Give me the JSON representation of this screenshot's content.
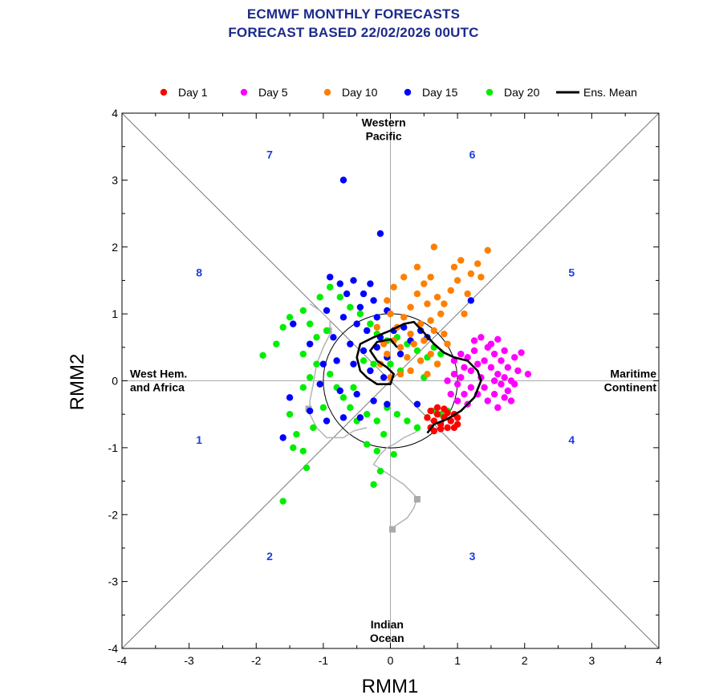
{
  "header": {
    "title_line1": "ECMWF MONTHLY FORECASTS",
    "title_line2": "FORECAST  BASED 22/02/2026 00UTC"
  },
  "chart_data": {
    "type": "scatter",
    "xlabel": "RMM1",
    "ylabel": "RMM2",
    "xlim": [
      -4,
      4
    ],
    "ylim": [
      -4,
      4
    ],
    "xticks": [
      "-4",
      "-3",
      "-2",
      "-1",
      "0",
      "1",
      "2",
      "3",
      "4"
    ],
    "yticks": [
      "-4",
      "-3",
      "-2",
      "-1",
      "0",
      "1",
      "2",
      "3",
      "4"
    ],
    "legend_position": "top",
    "regions": {
      "top": [
        "Western",
        "Pacific"
      ],
      "bottom": [
        "Indian",
        "Ocean"
      ],
      "left": [
        "West Hem.",
        "and Africa"
      ],
      "right": [
        "Maritime",
        "Continent"
      ]
    },
    "phases": [
      {
        "label": "1",
        "x": -2.85,
        "y": -0.88
      },
      {
        "label": "2",
        "x": -1.8,
        "y": -2.62
      },
      {
        "label": "3",
        "x": 1.22,
        "y": -2.62
      },
      {
        "label": "4",
        "x": 2.7,
        "y": -0.88
      },
      {
        "label": "5",
        "x": 2.7,
        "y": 1.62
      },
      {
        "label": "6",
        "x": 1.22,
        "y": 3.38
      },
      {
        "label": "7",
        "x": -1.8,
        "y": 3.38
      },
      {
        "label": "8",
        "x": -2.85,
        "y": 1.62
      }
    ],
    "unit_circle_radius": 1,
    "observed_track": {
      "color": "#b4b4b4",
      "points": [
        [
          0.45,
          -0.72
        ],
        [
          0.35,
          -0.78
        ],
        [
          0.2,
          -0.85
        ],
        [
          0.05,
          -0.95
        ],
        [
          -0.05,
          -1.0
        ],
        [
          -0.15,
          -1.1
        ],
        [
          -0.25,
          -1.25
        ],
        [
          -0.1,
          -1.35
        ],
        [
          0.05,
          -1.45
        ],
        [
          0.2,
          -1.55
        ],
        [
          0.3,
          -1.65
        ],
        [
          0.4,
          -1.75
        ],
        [
          0.35,
          -1.9
        ],
        [
          0.25,
          -2.05
        ],
        [
          0.1,
          -2.15
        ],
        [
          0.0,
          -2.22
        ]
      ],
      "markers": [
        [
          0.4,
          -1.77
        ],
        [
          0.03,
          -2.22
        ]
      ]
    },
    "observed_track2": {
      "color": "#b4b4b4",
      "points": [
        [
          -0.35,
          -0.7
        ],
        [
          -0.55,
          -0.75
        ],
        [
          -0.7,
          -0.85
        ],
        [
          -0.95,
          -0.85
        ],
        [
          -1.1,
          -0.7
        ],
        [
          -1.2,
          -0.5
        ],
        [
          -1.2,
          -0.3
        ],
        [
          -1.15,
          -0.05
        ],
        [
          -1.1,
          0.25
        ],
        [
          -1.0,
          0.5
        ],
        [
          -0.9,
          0.7
        ],
        [
          -0.9,
          0.9
        ],
        [
          -1.05,
          1.05
        ],
        [
          -1.2,
          1.15
        ]
      ],
      "markers": [
        [
          -1.22,
          -0.42
        ],
        [
          -0.92,
          0.75
        ]
      ]
    },
    "ensemble_mean": {
      "name": "Ens. Mean",
      "color": "#000000",
      "points": [
        [
          0.55,
          -0.78
        ],
        [
          0.65,
          -0.65
        ],
        [
          0.85,
          -0.57
        ],
        [
          1.05,
          -0.45
        ],
        [
          1.25,
          -0.25
        ],
        [
          1.35,
          0.0
        ],
        [
          1.3,
          0.15
        ],
        [
          1.15,
          0.3
        ],
        [
          0.95,
          0.35
        ],
        [
          0.8,
          0.42
        ],
        [
          0.65,
          0.55
        ],
        [
          0.5,
          0.72
        ],
        [
          0.35,
          0.88
        ],
        [
          0.2,
          0.85
        ],
        [
          0.0,
          0.75
        ],
        [
          -0.25,
          0.65
        ],
        [
          -0.45,
          0.55
        ],
        [
          -0.5,
          0.35
        ],
        [
          -0.45,
          0.15
        ],
        [
          -0.35,
          0.05
        ],
        [
          -0.2,
          -0.05
        ],
        [
          0.0,
          -0.05
        ],
        [
          0.05,
          0.1
        ],
        [
          -0.05,
          0.2
        ],
        [
          -0.2,
          0.3
        ],
        [
          -0.3,
          0.45
        ],
        [
          -0.2,
          0.58
        ],
        [
          0.0,
          0.62
        ],
        [
          0.1,
          0.5
        ]
      ]
    },
    "series": [
      {
        "name": "Day 1",
        "color": "#ff0000",
        "points": [
          [
            0.55,
            -0.55
          ],
          [
            0.6,
            -0.7
          ],
          [
            0.65,
            -0.6
          ],
          [
            0.7,
            -0.5
          ],
          [
            0.75,
            -0.65
          ],
          [
            0.8,
            -0.55
          ],
          [
            0.85,
            -0.7
          ],
          [
            0.9,
            -0.6
          ],
          [
            0.95,
            -0.5
          ],
          [
            1.0,
            -0.65
          ],
          [
            0.6,
            -0.45
          ],
          [
            0.7,
            -0.4
          ],
          [
            0.8,
            -0.42
          ],
          [
            0.65,
            -0.75
          ],
          [
            0.75,
            -0.72
          ],
          [
            0.95,
            -0.7
          ],
          [
            1.0,
            -0.55
          ],
          [
            0.85,
            -0.48
          ]
        ]
      },
      {
        "name": "Day 5",
        "color": "#ff00ff",
        "points": [
          [
            0.95,
            0.3
          ],
          [
            1.05,
            0.4
          ],
          [
            1.1,
            0.2
          ],
          [
            1.15,
            0.35
          ],
          [
            1.2,
            0.15
          ],
          [
            1.25,
            0.45
          ],
          [
            1.3,
            0.25
          ],
          [
            1.35,
            0.05
          ],
          [
            1.4,
            0.3
          ],
          [
            1.45,
            0.5
          ],
          [
            1.5,
            0.2
          ],
          [
            1.55,
            0.4
          ],
          [
            1.6,
            0.1
          ],
          [
            1.65,
            0.3
          ],
          [
            1.7,
            0.45
          ],
          [
            1.75,
            0.2
          ],
          [
            1.8,
            0.0
          ],
          [
            1.85,
            0.35
          ],
          [
            1.9,
            0.15
          ],
          [
            1.95,
            0.42
          ],
          [
            2.05,
            0.1
          ],
          [
            1.2,
            -0.1
          ],
          [
            1.3,
            -0.2
          ],
          [
            1.4,
            -0.1
          ],
          [
            1.45,
            -0.3
          ],
          [
            1.55,
            -0.2
          ],
          [
            1.6,
            -0.4
          ],
          [
            1.65,
            -0.05
          ],
          [
            1.7,
            -0.25
          ],
          [
            1.75,
            -0.15
          ],
          [
            1.8,
            -0.3
          ],
          [
            1.55,
            0.0
          ],
          [
            1.25,
            0.6
          ],
          [
            1.35,
            0.65
          ],
          [
            1.5,
            0.55
          ],
          [
            1.6,
            0.62
          ],
          [
            0.85,
            0.0
          ],
          [
            0.95,
            0.1
          ],
          [
            1.0,
            -0.05
          ],
          [
            1.05,
            0.05
          ],
          [
            1.1,
            -0.2
          ],
          [
            1.15,
            -0.35
          ],
          [
            1.0,
            -0.3
          ],
          [
            0.9,
            -0.2
          ],
          [
            1.7,
            0.05
          ],
          [
            1.85,
            -0.05
          ]
        ]
      },
      {
        "name": "Day 10",
        "color": "#ff7f00",
        "points": [
          [
            -0.15,
            0.25
          ],
          [
            -0.05,
            0.4
          ],
          [
            0.05,
            0.6
          ],
          [
            0.15,
            0.5
          ],
          [
            0.25,
            0.35
          ],
          [
            0.3,
            0.15
          ],
          [
            0.35,
            0.55
          ],
          [
            0.45,
            0.3
          ],
          [
            0.5,
            0.6
          ],
          [
            0.55,
            0.1
          ],
          [
            0.6,
            0.4
          ],
          [
            0.65,
            0.75
          ],
          [
            0.7,
            0.25
          ],
          [
            0.75,
            1.0
          ],
          [
            0.8,
            1.15
          ],
          [
            0.85,
            0.55
          ],
          [
            0.9,
            1.35
          ],
          [
            1.0,
            1.5
          ],
          [
            1.1,
            1.0
          ],
          [
            1.15,
            1.3
          ],
          [
            1.2,
            1.6
          ],
          [
            1.3,
            1.75
          ],
          [
            1.35,
            1.55
          ],
          [
            1.45,
            1.95
          ],
          [
            1.05,
            1.8
          ],
          [
            0.95,
            1.7
          ],
          [
            0.65,
            2.0
          ],
          [
            0.4,
            1.7
          ],
          [
            0.2,
            1.55
          ],
          [
            0.05,
            1.4
          ],
          [
            -0.05,
            1.2
          ],
          [
            0.0,
            1.0
          ],
          [
            0.1,
            0.8
          ],
          [
            0.2,
            0.95
          ],
          [
            0.3,
            1.1
          ],
          [
            0.4,
            1.3
          ],
          [
            0.5,
            1.45
          ],
          [
            0.55,
            1.15
          ],
          [
            0.6,
            0.9
          ],
          [
            0.7,
            1.25
          ],
          [
            0.45,
            0.85
          ],
          [
            0.3,
            0.7
          ],
          [
            0.15,
            0.1
          ],
          [
            0.0,
            0.05
          ],
          [
            -0.1,
            0.55
          ],
          [
            0.6,
            1.55
          ],
          [
            0.8,
            0.7
          ],
          [
            -0.2,
            0.8
          ]
        ]
      },
      {
        "name": "Day 15",
        "color": "#0000ff",
        "points": [
          [
            -0.7,
            3.0
          ],
          [
            -0.15,
            2.2
          ],
          [
            -0.9,
            1.55
          ],
          [
            -0.75,
            1.45
          ],
          [
            -0.55,
            1.5
          ],
          [
            -0.3,
            1.45
          ],
          [
            -0.65,
            1.3
          ],
          [
            -0.45,
            1.1
          ],
          [
            -0.25,
            1.2
          ],
          [
            -0.05,
            1.05
          ],
          [
            -0.95,
            1.05
          ],
          [
            -0.7,
            0.95
          ],
          [
            -0.5,
            0.85
          ],
          [
            -0.35,
            0.75
          ],
          [
            -0.15,
            0.65
          ],
          [
            -0.6,
            0.55
          ],
          [
            -0.4,
            0.45
          ],
          [
            -0.2,
            0.5
          ],
          [
            -0.05,
            0.35
          ],
          [
            0.15,
            0.4
          ],
          [
            0.3,
            0.6
          ],
          [
            0.45,
            0.75
          ],
          [
            0.2,
            0.8
          ],
          [
            0.05,
            0.75
          ],
          [
            -0.8,
            0.3
          ],
          [
            -0.55,
            0.25
          ],
          [
            -0.3,
            0.15
          ],
          [
            -0.1,
            0.05
          ],
          [
            -1.05,
            -0.05
          ],
          [
            -0.75,
            -0.15
          ],
          [
            -0.5,
            -0.2
          ],
          [
            -0.25,
            -0.3
          ],
          [
            -0.05,
            -0.35
          ],
          [
            -1.5,
            -0.25
          ],
          [
            -1.2,
            -0.45
          ],
          [
            -0.95,
            -0.6
          ],
          [
            -0.7,
            -0.55
          ],
          [
            -0.45,
            -0.55
          ],
          [
            -1.6,
            -0.85
          ],
          [
            -1.45,
            0.85
          ],
          [
            -1.2,
            0.55
          ],
          [
            -1.0,
            0.25
          ],
          [
            1.2,
            1.2
          ],
          [
            0.55,
            0.65
          ],
          [
            -0.85,
            0.65
          ],
          [
            0.4,
            -0.35
          ],
          [
            -0.4,
            1.3
          ],
          [
            -0.2,
            0.95
          ]
        ]
      },
      {
        "name": "Day 20",
        "color": "#00ee00",
        "points": [
          [
            -1.9,
            0.38
          ],
          [
            -1.7,
            0.55
          ],
          [
            -1.6,
            0.8
          ],
          [
            -1.5,
            0.95
          ],
          [
            -1.3,
            1.05
          ],
          [
            -1.2,
            0.85
          ],
          [
            -1.1,
            0.65
          ],
          [
            -1.3,
            0.4
          ],
          [
            -1.1,
            0.25
          ],
          [
            -1.2,
            0.05
          ],
          [
            -1.3,
            -0.1
          ],
          [
            -1.5,
            -0.5
          ],
          [
            -1.4,
            -0.8
          ],
          [
            -1.3,
            -1.05
          ],
          [
            -1.25,
            -1.3
          ],
          [
            -1.6,
            -1.8
          ],
          [
            -0.9,
            1.4
          ],
          [
            -0.75,
            1.25
          ],
          [
            -0.6,
            1.1
          ],
          [
            -0.45,
            1.0
          ],
          [
            -0.3,
            0.85
          ],
          [
            -0.2,
            0.7
          ],
          [
            -0.05,
            0.6
          ],
          [
            0.1,
            0.65
          ],
          [
            0.25,
            0.55
          ],
          [
            0.4,
            0.45
          ],
          [
            0.55,
            0.35
          ],
          [
            0.65,
            0.5
          ],
          [
            0.75,
            0.4
          ],
          [
            -0.9,
            0.1
          ],
          [
            -0.8,
            -0.1
          ],
          [
            -0.7,
            -0.25
          ],
          [
            -0.6,
            -0.4
          ],
          [
            -0.5,
            -0.6
          ],
          [
            -0.35,
            -0.5
          ],
          [
            -0.2,
            -0.6
          ],
          [
            -0.05,
            -0.4
          ],
          [
            0.1,
            -0.5
          ],
          [
            0.25,
            -0.6
          ],
          [
            0.4,
            -0.7
          ],
          [
            0.55,
            -0.55
          ],
          [
            0.65,
            -0.45
          ],
          [
            0.75,
            -0.5
          ],
          [
            -0.35,
            -0.95
          ],
          [
            -0.2,
            -1.05
          ],
          [
            -0.15,
            -1.35
          ],
          [
            -0.25,
            -1.55
          ],
          [
            -0.1,
            -0.8
          ],
          [
            0.05,
            -1.1
          ],
          [
            0.85,
            -0.45
          ],
          [
            -1.0,
            -0.4
          ],
          [
            -1.15,
            -0.7
          ],
          [
            -0.55,
            -0.1
          ],
          [
            -0.4,
            0.3
          ],
          [
            -0.25,
            0.25
          ],
          [
            0.0,
            0.25
          ],
          [
            0.15,
            0.15
          ],
          [
            0.5,
            0.05
          ],
          [
            0.7,
            0.25
          ],
          [
            -1.05,
            1.25
          ],
          [
            -0.95,
            0.75
          ],
          [
            -1.45,
            -1.0
          ]
        ]
      }
    ]
  }
}
